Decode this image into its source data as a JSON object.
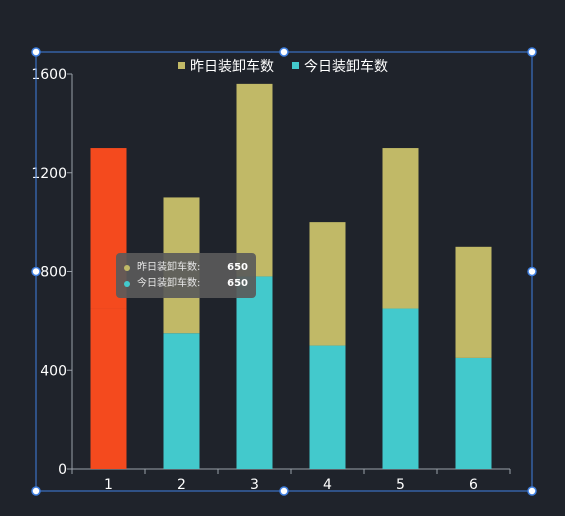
{
  "chart_data": {
    "type": "bar",
    "stacked": true,
    "categories": [
      "1",
      "2",
      "3",
      "4",
      "5",
      "6"
    ],
    "series": [
      {
        "name": "今日装卸车数",
        "color": "#43c9cc",
        "values": [
          650,
          550,
          780,
          500,
          650,
          450
        ]
      },
      {
        "name": "昨日装卸车数",
        "color": "#c1b967",
        "values": [
          650,
          550,
          780,
          500,
          650,
          450
        ]
      }
    ],
    "highlight": {
      "index": 0,
      "color": "#f44a1e"
    },
    "yticks": [
      "0",
      "400",
      "800",
      "1200",
      "1600"
    ],
    "ylim": [
      0,
      1600
    ],
    "grid": false,
    "legend_position": "top-center",
    "title": "",
    "xlabel": "",
    "ylabel": ""
  },
  "legend": [
    {
      "label": "昨日装卸车数",
      "color": "#c1b967"
    },
    {
      "label": "今日装卸车数",
      "color": "#43c9cc"
    }
  ],
  "tooltip": {
    "rows": [
      {
        "label": "昨日装卸车数:",
        "value": "650",
        "color": "#c1b967"
      },
      {
        "label": "今日装卸车数:",
        "value": "650",
        "color": "#43c9cc"
      }
    ]
  },
  "selection_color": "#3f7fe0"
}
